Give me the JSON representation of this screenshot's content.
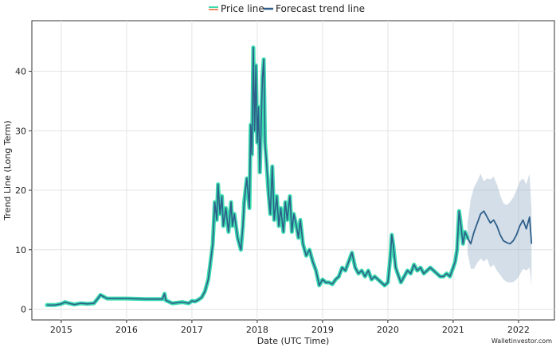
{
  "chart_data": {
    "type": "line",
    "xlabel": "Date (UTC Time)",
    "ylabel": "Trend Line (Long Term)",
    "xlim": [
      2014.55,
      2022.55
    ],
    "ylim": [
      -1.8,
      48.5
    ],
    "x_ticks": [
      2015,
      2016,
      2017,
      2018,
      2019,
      2020,
      2021,
      2022
    ],
    "x_tick_labels": [
      "2015",
      "2016",
      "2017",
      "2018",
      "2019",
      "2020",
      "2021",
      "2022"
    ],
    "y_ticks": [
      0,
      10,
      20,
      30,
      40
    ],
    "y_tick_labels": [
      "0",
      "10",
      "20",
      "30",
      "40"
    ],
    "grid": true,
    "legend": {
      "position": "top-center",
      "entries": [
        {
          "label": "Price line",
          "color": "#3ddbb0",
          "accent": "#ef8a62"
        },
        {
          "label": "Forecast trend line",
          "color": "#2e5f8a"
        }
      ]
    },
    "series": [
      {
        "name": "Price line",
        "color": "#3ddbb0",
        "x": [
          2014.78,
          2014.9,
          2015.0,
          2015.06,
          2015.12,
          2015.2,
          2015.3,
          2015.4,
          2015.5,
          2015.56,
          2015.6,
          2015.7,
          2016.0,
          2016.3,
          2016.55,
          2016.58,
          2016.6,
          2016.7,
          2016.85,
          2016.95,
          2017.0,
          2017.05,
          2017.1,
          2017.15,
          2017.2,
          2017.25,
          2017.28,
          2017.32,
          2017.35,
          2017.38,
          2017.4,
          2017.43,
          2017.46,
          2017.48,
          2017.52,
          2017.56,
          2017.6,
          2017.62,
          2017.65,
          2017.7,
          2017.75,
          2017.78,
          2017.8,
          2017.84,
          2017.88,
          2017.9,
          2017.92,
          2017.94,
          2017.96,
          2017.98,
          2018.0,
          2018.02,
          2018.04,
          2018.06,
          2018.08,
          2018.1,
          2018.12,
          2018.14,
          2018.17,
          2018.2,
          2018.23,
          2018.26,
          2018.3,
          2018.33,
          2018.36,
          2018.4,
          2018.43,
          2018.46,
          2018.5,
          2018.53,
          2018.56,
          2018.6,
          2018.63,
          2018.66,
          2018.7,
          2018.75,
          2018.8,
          2018.85,
          2018.9,
          2018.95,
          2019.0,
          2019.05,
          2019.1,
          2019.15,
          2019.2,
          2019.25,
          2019.3,
          2019.35,
          2019.4,
          2019.45,
          2019.5,
          2019.55,
          2019.6,
          2019.65,
          2019.7,
          2019.75,
          2019.8,
          2019.85,
          2019.9,
          2019.95,
          2020.0,
          2020.04,
          2020.06,
          2020.08,
          2020.12,
          2020.15,
          2020.2,
          2020.25,
          2020.3,
          2020.35,
          2020.4,
          2020.45,
          2020.5,
          2020.55,
          2020.6,
          2020.65,
          2020.7,
          2020.75,
          2020.8,
          2020.85,
          2020.9,
          2020.95,
          2021.0,
          2021.03,
          2021.06,
          2021.09,
          2021.12,
          2021.15,
          2021.18,
          2021.22
        ],
        "y": [
          0.7,
          0.7,
          0.9,
          1.2,
          1.0,
          0.8,
          1.0,
          0.9,
          1.0,
          1.8,
          2.4,
          1.8,
          1.8,
          1.7,
          1.7,
          2.6,
          1.5,
          1.0,
          1.2,
          1.0,
          1.4,
          1.3,
          1.6,
          2.0,
          3.0,
          5.0,
          7.5,
          11.0,
          18.0,
          15.0,
          21.0,
          16.0,
          19.0,
          14.0,
          17.0,
          13.0,
          18.0,
          14.0,
          16.0,
          12.0,
          10.0,
          14.0,
          18.0,
          22.0,
          17.0,
          31.0,
          26.0,
          44.0,
          30.0,
          41.0,
          28.0,
          34.0,
          23.0,
          31.0,
          39.0,
          42.0,
          28.0,
          25.0,
          20.0,
          16.0,
          24.0,
          15.0,
          19.0,
          14.0,
          17.0,
          13.0,
          18.0,
          15.0,
          19.0,
          13.0,
          16.0,
          14.0,
          12.0,
          15.0,
          11.0,
          9.0,
          10.0,
          8.0,
          6.5,
          4.0,
          5.0,
          4.5,
          4.5,
          4.2,
          5.0,
          5.5,
          7.0,
          6.5,
          8.0,
          9.5,
          7.0,
          6.0,
          6.5,
          5.5,
          6.5,
          5.0,
          5.5,
          5.0,
          4.5,
          4.0,
          4.5,
          9.0,
          12.5,
          11.0,
          7.0,
          6.0,
          4.5,
          5.5,
          6.5,
          6.0,
          7.5,
          6.5,
          7.0,
          6.0,
          6.5,
          7.0,
          6.5,
          6.0,
          5.5,
          5.5,
          6.0,
          5.5,
          7.0,
          8.0,
          10.0,
          16.5,
          14.0,
          11.0,
          13.0,
          12.0
        ]
      },
      {
        "name": "Forecast trend line",
        "color": "#2e5f8a",
        "x": [
          2021.22,
          2021.27,
          2021.32,
          2021.37,
          2021.42,
          2021.47,
          2021.52,
          2021.57,
          2021.62,
          2021.67,
          2021.72,
          2021.77,
          2021.82,
          2021.87,
          2021.92,
          2021.97,
          2022.02,
          2022.07,
          2022.12,
          2022.17,
          2022.2
        ],
        "y": [
          12.0,
          11.0,
          13.0,
          14.5,
          16.0,
          16.5,
          15.5,
          14.5,
          15.0,
          14.0,
          12.5,
          11.5,
          11.2,
          11.0,
          11.5,
          12.5,
          14.0,
          15.0,
          13.5,
          15.5,
          11.0
        ],
        "band_lower": [
          9.5,
          6.8,
          6.8,
          7.8,
          8.5,
          8.0,
          8.5,
          7.0,
          7.5,
          6.5,
          5.8,
          5.0,
          4.6,
          4.5,
          4.6,
          5.0,
          5.8,
          6.8,
          6.5,
          7.0,
          4.0
        ],
        "band_upper": [
          14.5,
          18.5,
          20.5,
          21.5,
          22.8,
          21.5,
          22.0,
          21.8,
          22.3,
          21.0,
          19.2,
          17.8,
          17.5,
          18.0,
          18.8,
          20.0,
          21.5,
          22.0,
          21.0,
          22.8,
          16.5
        ]
      }
    ],
    "watermark": "Walletinvestor.com"
  }
}
